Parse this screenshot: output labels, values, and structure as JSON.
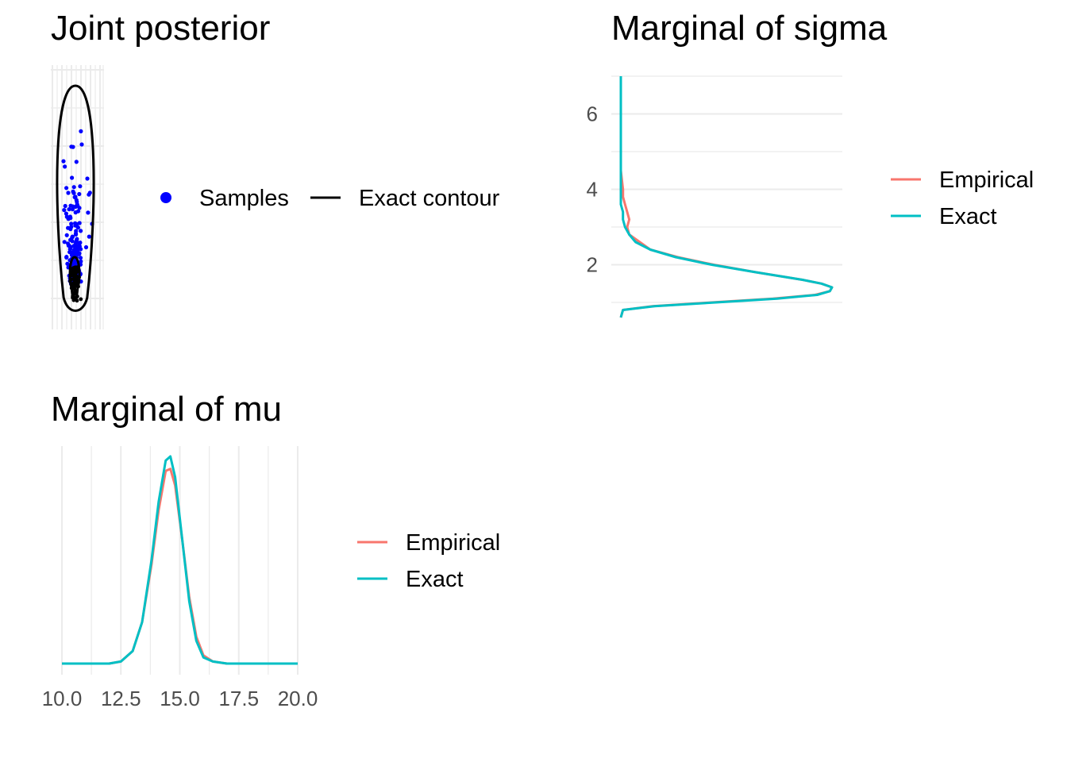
{
  "panels": {
    "joint": {
      "title": "Joint posterior"
    },
    "sigma": {
      "title": "Marginal of sigma"
    },
    "mu": {
      "title": "Marginal of mu"
    }
  },
  "colors": {
    "empirical": "#F8766D",
    "exact": "#00BFC4",
    "samples": "#0000FF",
    "contour": "#000000",
    "grid": "#EBEBEB",
    "tick_text": "#4D4D4D"
  },
  "chart_data": [
    {
      "type": "scatter",
      "title": "Joint posterior",
      "xlabel": "",
      "ylabel": "",
      "x_ticks_shown": false,
      "y_ticks_shown": false,
      "legend": {
        "position": "right",
        "entries": [
          "Samples",
          "Exact contour"
        ]
      },
      "series": [
        {
          "name": "Samples",
          "kind": "points",
          "center_mu": 14.6,
          "center_sigma": 1.4,
          "n_approx": 400
        },
        {
          "name": "Exact contour",
          "kind": "contour",
          "levels": 2
        }
      ]
    },
    {
      "type": "line",
      "title": "Marginal of sigma",
      "orientation": "vertical",
      "xlabel": "",
      "ylabel": "",
      "ylim": [
        0.6,
        7.0
      ],
      "y_ticks": [
        2,
        4,
        6
      ],
      "legend": {
        "position": "right",
        "entries": [
          "Empirical",
          "Exact"
        ]
      },
      "series": [
        {
          "name": "Empirical",
          "y": [
            0.6,
            0.8,
            0.9,
            1.0,
            1.1,
            1.2,
            1.3,
            1.4,
            1.5,
            1.6,
            1.8,
            2.0,
            2.2,
            2.4,
            2.6,
            2.8,
            3.0,
            3.2,
            3.4,
            3.6,
            3.8,
            4.0,
            4.5,
            5.0,
            5.5,
            6.0,
            7.0
          ],
          "density": [
            0.0,
            0.01,
            0.15,
            0.43,
            0.72,
            0.92,
            0.99,
            1.0,
            0.95,
            0.86,
            0.64,
            0.44,
            0.27,
            0.14,
            0.09,
            0.04,
            0.03,
            0.04,
            0.03,
            0.02,
            0.01,
            0.01,
            0.0,
            0.0,
            0.0,
            0.0,
            0.0
          ]
        },
        {
          "name": "Exact",
          "y": [
            0.6,
            0.8,
            0.9,
            1.0,
            1.1,
            1.2,
            1.3,
            1.4,
            1.5,
            1.6,
            1.8,
            2.0,
            2.2,
            2.4,
            2.6,
            2.8,
            3.0,
            3.2,
            3.4,
            3.6,
            3.8,
            4.0,
            4.5,
            5.0,
            5.5,
            6.0,
            7.0
          ],
          "density": [
            0.0,
            0.01,
            0.16,
            0.45,
            0.74,
            0.93,
            0.99,
            1.0,
            0.95,
            0.86,
            0.64,
            0.43,
            0.26,
            0.14,
            0.07,
            0.04,
            0.02,
            0.01,
            0.01,
            0.0,
            0.0,
            0.0,
            0.0,
            0.0,
            0.0,
            0.0,
            0.0
          ]
        }
      ]
    },
    {
      "type": "line",
      "title": "Marginal of mu",
      "xlabel": "",
      "ylabel": "",
      "xlim": [
        10,
        20
      ],
      "x_ticks": [
        "10.0",
        "12.5",
        "15.0",
        "17.5",
        "20.0"
      ],
      "legend": {
        "position": "right",
        "entries": [
          "Empirical",
          "Exact"
        ]
      },
      "series": [
        {
          "name": "Empirical",
          "x": [
            10.0,
            12.0,
            12.5,
            13.0,
            13.4,
            13.8,
            14.1,
            14.4,
            14.6,
            14.8,
            15.1,
            15.4,
            15.7,
            16.0,
            16.4,
            17.0,
            18.0,
            20.0
          ],
          "density": [
            0.0,
            0.0,
            0.01,
            0.06,
            0.2,
            0.48,
            0.74,
            0.93,
            0.94,
            0.86,
            0.6,
            0.32,
            0.13,
            0.04,
            0.01,
            0.0,
            0.0,
            0.0
          ]
        },
        {
          "name": "Exact",
          "x": [
            10.0,
            12.0,
            12.5,
            13.0,
            13.4,
            13.8,
            14.1,
            14.4,
            14.6,
            14.8,
            15.1,
            15.4,
            15.7,
            16.0,
            16.4,
            17.0,
            18.0,
            20.0
          ],
          "density": [
            0.0,
            0.0,
            0.01,
            0.06,
            0.2,
            0.5,
            0.78,
            0.98,
            1.0,
            0.9,
            0.6,
            0.3,
            0.11,
            0.03,
            0.01,
            0.0,
            0.0,
            0.0
          ]
        }
      ]
    }
  ]
}
